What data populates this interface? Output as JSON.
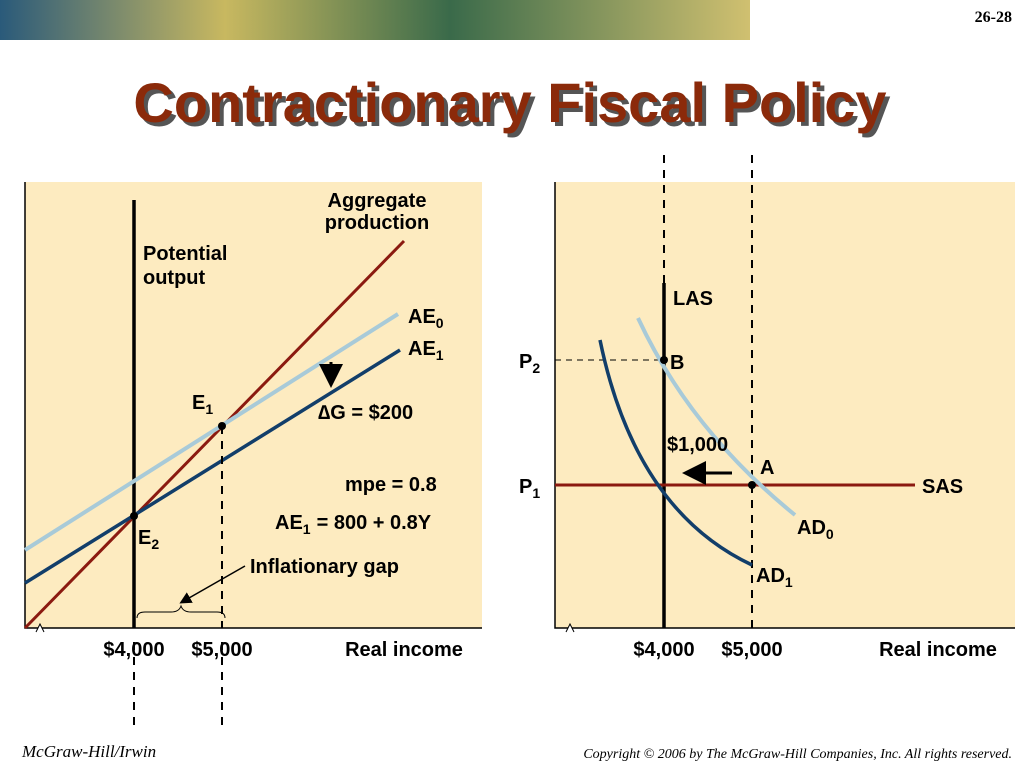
{
  "header": {
    "slide_number": "26-28",
    "title": "Contractionary Fiscal Policy"
  },
  "left_panel": {
    "aggregate_production": [
      "Aggregate",
      "production"
    ],
    "potential_output": [
      "Potential",
      "output"
    ],
    "ae0": {
      "text": "AE",
      "sub": "0"
    },
    "ae1": {
      "text": "AE",
      "sub": "1"
    },
    "e1": {
      "text": "E",
      "sub": "1"
    },
    "e2": {
      "text": "E",
      "sub": "2"
    },
    "delta_g": "∆G = $200",
    "mpe": "mpe = 0.8",
    "ae1_equation": {
      "text": "AE",
      "sub": "1",
      "rest": "= 800 + 0.8Y"
    },
    "inflationary_gap": "Inflationary gap",
    "x_labels": [
      "$4,000",
      "$5,000"
    ],
    "x_axis_title": "Real income"
  },
  "right_panel": {
    "las": "LAS",
    "sas": "SAS",
    "p2": {
      "text": "P",
      "sub": "2"
    },
    "p1": {
      "text": "P",
      "sub": "1"
    },
    "point_b": "B",
    "point_a": "A",
    "shift": "$1,000",
    "ad0": {
      "text": "AD",
      "sub": "0"
    },
    "ad1": {
      "text": "AD",
      "sub": "1"
    },
    "x_labels": [
      "$4,000",
      "$5,000"
    ],
    "x_axis_title": "Real income"
  },
  "footer": {
    "publisher": "McGraw-Hill/Irwin",
    "copyright": "Copyright © 2006 by The McGraw-Hill Companies, Inc. All rights reserved."
  }
}
